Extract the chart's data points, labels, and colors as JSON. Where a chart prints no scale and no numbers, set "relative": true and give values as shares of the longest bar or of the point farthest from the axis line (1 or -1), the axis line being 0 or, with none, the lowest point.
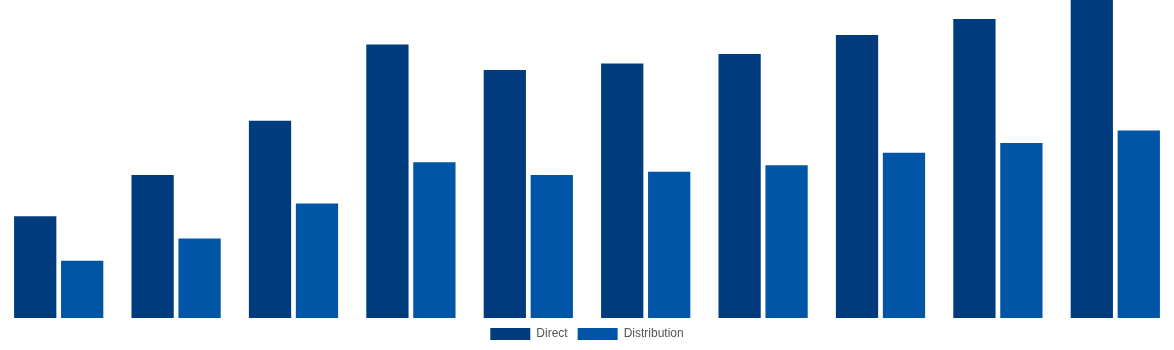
{
  "chart_data": {
    "type": "bar",
    "relative": true,
    "legend": "bottom",
    "categories": [
      null,
      null,
      null,
      null,
      null,
      null,
      null,
      null,
      null,
      null
    ],
    "series": [
      {
        "name": "Direct",
        "color": "#003c7d",
        "values": [
          0.32,
          0.45,
          0.62,
          0.86,
          0.78,
          0.8,
          0.83,
          0.89,
          0.94,
          1
        ]
      },
      {
        "name": "Distribution",
        "color": "#0055a6",
        "values": [
          0.18,
          0.25,
          0.36,
          0.49,
          0.45,
          0.46,
          0.48,
          0.52,
          0.55,
          0.59
        ]
      }
    ]
  }
}
